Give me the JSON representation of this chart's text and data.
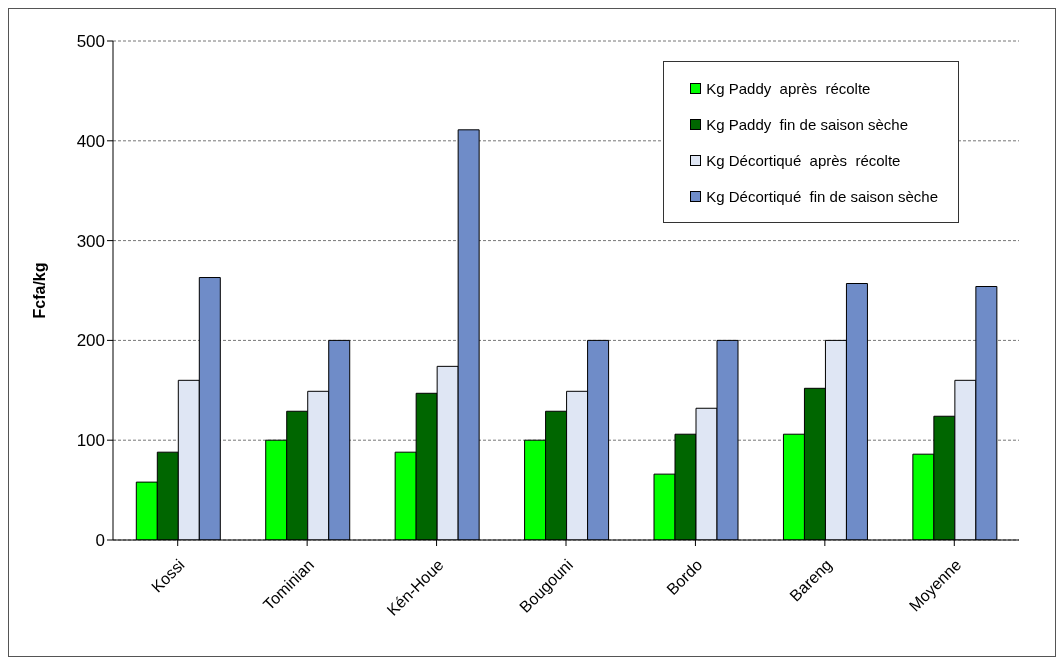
{
  "chart_data": {
    "type": "bar",
    "ylabel": "Fcfa/kg",
    "categories": [
      "Kossi",
      "Tominian",
      "Kén-Houe",
      "Bougouni",
      "Bordo",
      "Bareng",
      "Moyenne"
    ],
    "series": [
      {
        "name": "Kg Paddy  après  récolte",
        "color": "#00ff00",
        "values": [
          58,
          100,
          88,
          100,
          66,
          106,
          86
        ]
      },
      {
        "name": "Kg Paddy  fin de saison sèche",
        "color": "#006600",
        "values": [
          88,
          129,
          147,
          129,
          106,
          152,
          124
        ]
      },
      {
        "name": "Kg Décortiqué  après  récolte",
        "color": "#dfe6f4",
        "values": [
          160,
          149,
          174,
          149,
          132,
          200,
          160
        ]
      },
      {
        "name": "Kg Décortiqué  fin de saison sèche",
        "color": "#6f8cc8",
        "values": [
          263,
          200,
          411,
          200,
          200,
          257,
          254
        ]
      }
    ],
    "ylim": [
      0,
      500
    ],
    "yticks": [
      0,
      100,
      200,
      300,
      400,
      500
    ],
    "grid": "y",
    "legend": "top right"
  }
}
